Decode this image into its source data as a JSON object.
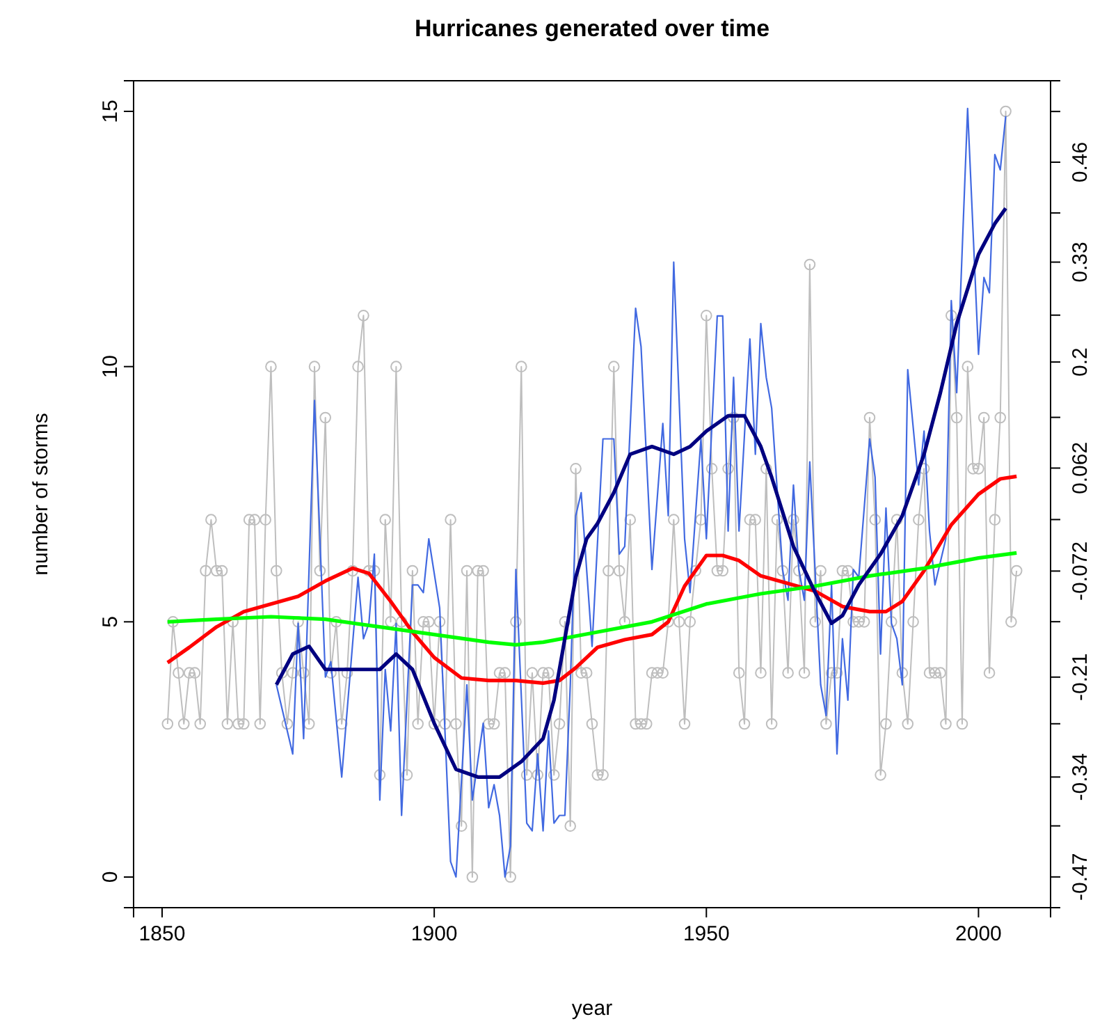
{
  "chart_data": {
    "type": "line",
    "title": "Hurricanes generated over time",
    "xlabel": "year",
    "ylabel": "number of storms",
    "xlim": [
      1844.76,
      2013.24
    ],
    "xticks": [
      1850,
      1900,
      1950,
      2000
    ],
    "ylim": [
      -0.6,
      15.6
    ],
    "yticks": [
      0,
      5,
      10,
      15
    ],
    "y2lim": [
      -0.51,
      0.566
    ],
    "y2ticks": [
      {
        "value": -0.47,
        "label": "-0.47"
      },
      {
        "value": -0.4036,
        "label": null
      },
      {
        "value": -0.34,
        "label": "-0.34"
      },
      {
        "value": -0.2707,
        "label": null
      },
      {
        "value": -0.21,
        "label": "-0.21"
      },
      {
        "value": -0.1379,
        "label": null
      },
      {
        "value": -0.072,
        "label": "-0.072"
      },
      {
        "value": -0.005,
        "label": null
      },
      {
        "value": 0.062,
        "label": "0.062"
      },
      {
        "value": 0.128,
        "label": null
      },
      {
        "value": 0.2,
        "label": "0.2"
      },
      {
        "value": 0.261,
        "label": null
      },
      {
        "value": 0.33,
        "label": "0.33"
      },
      {
        "value": 0.394,
        "label": null
      },
      {
        "value": 0.46,
        "label": "0.46"
      },
      {
        "value": 0.526,
        "label": null
      }
    ],
    "grid": false,
    "series": [
      {
        "marker": "circle",
        "color": "#bebebe",
        "x": [
          1851,
          1852,
          1853,
          1854,
          1855,
          1856,
          1857,
          1858,
          1859,
          1860,
          1861,
          1862,
          1863,
          1864,
          1865,
          1866,
          1867,
          1868,
          1869,
          1870,
          1871,
          1872,
          1873,
          1874,
          1875,
          1876,
          1877,
          1878,
          1879,
          1880,
          1881,
          1882,
          1883,
          1884,
          1885,
          1886,
          1887,
          1888,
          1889,
          1890,
          1891,
          1892,
          1893,
          1894,
          1895,
          1896,
          1897,
          1898,
          1899,
          1900,
          1901,
          1902,
          1903,
          1904,
          1905,
          1906,
          1907,
          1908,
          1909,
          1910,
          1911,
          1912,
          1913,
          1914,
          1915,
          1916,
          1917,
          1918,
          1919,
          1920,
          1921,
          1922,
          1923,
          1924,
          1925,
          1926,
          1927,
          1928,
          1929,
          1930,
          1931,
          1932,
          1933,
          1934,
          1935,
          1936,
          1937,
          1938,
          1939,
          1940,
          1941,
          1942,
          1943,
          1944,
          1945,
          1946,
          1947,
          1948,
          1949,
          1950,
          1951,
          1952,
          1953,
          1954,
          1955,
          1956,
          1957,
          1958,
          1959,
          1960,
          1961,
          1962,
          1963,
          1964,
          1965,
          1966,
          1967,
          1968,
          1969,
          1970,
          1971,
          1972,
          1973,
          1974,
          1975,
          1976,
          1977,
          1978,
          1979,
          1980,
          1981,
          1982,
          1983,
          1984,
          1985,
          1986,
          1987,
          1988,
          1989,
          1990,
          1991,
          1992,
          1993,
          1994,
          1995,
          1996,
          1997,
          1998,
          1999,
          2000,
          2001,
          2002,
          2003,
          2004,
          2005,
          2006,
          2007
        ],
        "values": [
          3,
          5,
          4,
          3,
          4,
          4,
          3,
          6,
          7,
          6,
          6,
          3,
          5,
          3,
          3,
          7,
          7,
          3,
          7,
          10,
          6,
          4,
          3,
          4,
          5,
          4,
          3,
          10,
          6,
          9,
          4,
          5,
          3,
          4,
          6,
          10,
          11,
          6,
          6,
          2,
          7,
          5,
          10,
          5,
          2,
          6,
          3,
          5,
          5,
          3,
          5,
          3,
          7,
          3,
          1,
          6,
          0,
          6,
          6,
          3,
          3,
          4,
          4,
          0,
          5,
          10,
          2,
          4,
          2,
          4,
          4,
          2,
          3,
          5,
          1,
          8,
          4,
          4,
          3,
          2,
          2,
          6,
          10,
          6,
          5,
          7,
          3,
          3,
          3,
          4,
          4,
          4,
          5,
          7,
          5,
          3,
          5,
          6,
          7,
          11,
          8,
          6,
          6,
          8,
          9,
          4,
          3,
          7,
          7,
          4,
          8,
          3,
          7,
          6,
          4,
          7,
          6,
          4,
          12,
          5,
          6,
          3,
          4,
          4,
          6,
          6,
          5,
          5,
          5,
          9,
          7,
          2,
          3,
          5,
          7,
          4,
          3,
          5,
          7,
          8,
          4,
          4,
          4,
          3,
          11,
          9,
          3,
          10,
          8,
          8,
          9,
          4,
          7,
          9,
          15,
          5,
          6
        ]
      },
      {
        "marker": "none",
        "axis": "y2",
        "color": "#4169e1",
        "x": [
          1871,
          1874,
          1875,
          1876,
          1878,
          1880,
          1881,
          1883,
          1886,
          1887,
          1888,
          1889,
          1890,
          1891,
          1892,
          1893,
          1894,
          1896,
          1897,
          1898,
          1899,
          1901,
          1903,
          1904,
          1906,
          1907,
          1909,
          1910,
          1911,
          1912,
          1913,
          1914,
          1915,
          1917,
          1918,
          1919,
          1920,
          1921,
          1922,
          1923,
          1924,
          1925,
          1926,
          1927,
          1929,
          1931,
          1932,
          1933,
          1934,
          1935,
          1937,
          1938,
          1940,
          1942,
          1943,
          1944,
          1946,
          1947,
          1949,
          1950,
          1952,
          1953,
          1954,
          1955,
          1956,
          1958,
          1959,
          1960,
          1961,
          1962,
          1964,
          1965,
          1966,
          1967,
          1968,
          1969,
          1971,
          1972,
          1973,
          1974,
          1975,
          1976,
          1977,
          1978,
          1980,
          1981,
          1982,
          1983,
          1984,
          1985,
          1986,
          1987,
          1989,
          1990,
          1991,
          1992,
          1993,
          1994,
          1995,
          1996,
          1998,
          2000,
          2001,
          2002,
          2003,
          2004,
          2005
        ],
        "values": [
          -0.22,
          -0.31,
          -0.14,
          -0.29,
          0.15,
          -0.21,
          -0.19,
          -0.34,
          -0.08,
          -0.16,
          -0.14,
          -0.05,
          -0.37,
          -0.2,
          -0.28,
          -0.14,
          -0.39,
          -0.09,
          -0.09,
          -0.1,
          -0.03,
          -0.12,
          -0.45,
          -0.47,
          -0.22,
          -0.37,
          -0.27,
          -0.38,
          -0.35,
          -0.39,
          -0.47,
          -0.43,
          -0.07,
          -0.4,
          -0.41,
          -0.31,
          -0.41,
          -0.28,
          -0.4,
          -0.39,
          -0.39,
          -0.22,
          0.0,
          0.03,
          -0.17,
          0.1,
          0.1,
          0.1,
          -0.05,
          -0.04,
          0.27,
          0.22,
          -0.07,
          0.12,
          0.0,
          0.33,
          -0.03,
          -0.1,
          0.1,
          -0.03,
          0.26,
          0.26,
          -0.02,
          0.18,
          -0.02,
          0.23,
          0.08,
          0.25,
          0.18,
          0.14,
          -0.07,
          -0.11,
          0.04,
          -0.07,
          -0.11,
          0.07,
          -0.22,
          -0.26,
          -0.09,
          -0.31,
          -0.16,
          -0.24,
          -0.07,
          -0.08,
          0.1,
          0.05,
          -0.18,
          0.01,
          -0.14,
          -0.16,
          -0.22,
          0.19,
          0.04,
          0.11,
          -0.02,
          -0.09,
          -0.06,
          -0.03,
          0.28,
          0.16,
          0.53,
          0.21,
          0.31,
          0.29,
          0.47,
          0.45,
          0.52
        ]
      },
      {
        "marker": "none",
        "color": "#ff0000",
        "x": [
          1851,
          1855,
          1860,
          1865,
          1870,
          1875,
          1880,
          1885,
          1888,
          1892,
          1896,
          1900,
          1905,
          1910,
          1915,
          1920,
          1923,
          1926,
          1930,
          1935,
          1940,
          1943,
          1946,
          1950,
          1953,
          1956,
          1960,
          1965,
          1970,
          1975,
          1980,
          1983,
          1986,
          1990,
          1995,
          2000,
          2004,
          2007
        ],
        "values": [
          4.2,
          4.5,
          4.9,
          5.2,
          5.35,
          5.5,
          5.8,
          6.05,
          5.95,
          5.4,
          4.8,
          4.3,
          3.9,
          3.85,
          3.85,
          3.8,
          3.85,
          4.1,
          4.5,
          4.65,
          4.75,
          5.0,
          5.7,
          6.3,
          6.3,
          6.2,
          5.9,
          5.75,
          5.6,
          5.3,
          5.2,
          5.2,
          5.4,
          6.0,
          6.9,
          7.5,
          7.8,
          7.85
        ]
      },
      {
        "marker": "none",
        "color": "#00ff00",
        "x": [
          1851,
          1860,
          1870,
          1880,
          1890,
          1900,
          1910,
          1915,
          1920,
          1930,
          1940,
          1950,
          1960,
          1970,
          1980,
          1990,
          2000,
          2007
        ],
        "values": [
          5.0,
          5.05,
          5.1,
          5.05,
          4.9,
          4.75,
          4.6,
          4.55,
          4.6,
          4.8,
          5.0,
          5.35,
          5.55,
          5.7,
          5.9,
          6.05,
          6.25,
          6.35
        ]
      },
      {
        "marker": "none",
        "axis": "y2",
        "color": "#000080",
        "x": [
          1871,
          1874,
          1877,
          1880,
          1885,
          1890,
          1893,
          1896,
          1900,
          1904,
          1908,
          1912,
          1916,
          1920,
          1922,
          1924,
          1926,
          1928,
          1930,
          1933,
          1936,
          1940,
          1944,
          1947,
          1950,
          1954,
          1957,
          1960,
          1962,
          1966,
          1970,
          1973,
          1975,
          1978,
          1982,
          1986,
          1990,
          1993,
          1996,
          2000,
          2003,
          2005
        ],
        "values": [
          -0.22,
          -0.18,
          -0.17,
          -0.2,
          -0.2,
          -0.2,
          -0.18,
          -0.2,
          -0.27,
          -0.33,
          -0.34,
          -0.34,
          -0.32,
          -0.29,
          -0.24,
          -0.16,
          -0.08,
          -0.03,
          -0.01,
          0.03,
          0.08,
          0.09,
          0.08,
          0.09,
          0.11,
          0.13,
          0.13,
          0.09,
          0.05,
          -0.04,
          -0.1,
          -0.14,
          -0.13,
          -0.09,
          -0.05,
          0.0,
          0.08,
          0.16,
          0.25,
          0.34,
          0.38,
          0.4
        ]
      }
    ]
  }
}
